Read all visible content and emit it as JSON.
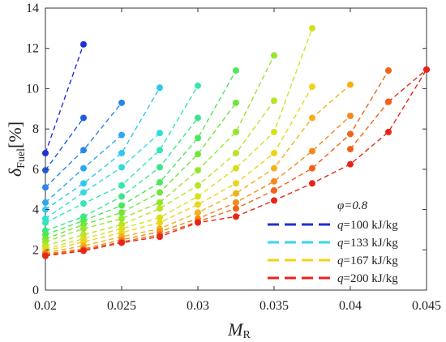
{
  "chart_data": {
    "type": "line",
    "xlabel": "M",
    "xlabel_sub": "R",
    "ylabel": "δ",
    "ylabel_sub": "Fuel",
    "ylabel_unit": "[%]",
    "xlim": [
      0.02,
      0.045
    ],
    "ylim": [
      0,
      14
    ],
    "xticks": [
      0.02,
      0.025,
      0.03,
      0.035,
      0.04,
      0.045
    ],
    "xtick_labels": [
      "0.02",
      "0.025",
      "0.03",
      "0.035",
      "0.04",
      "0.045"
    ],
    "yticks": [
      0,
      2,
      4,
      6,
      8,
      10,
      12,
      14
    ],
    "ytick_labels": [
      "0",
      "2",
      "4",
      "6",
      "8",
      "10",
      "12",
      "14"
    ],
    "grid": false,
    "legend_placement": "bottom-right",
    "legend_title": "φ=0.8",
    "legend": [
      {
        "q": "q",
        "label": "=100 kJ/kg",
        "color": "#1f2fd6"
      },
      {
        "q": "q",
        "label": "=133 kJ/kg",
        "color": "#33d6f0"
      },
      {
        "q": "q",
        "label": "=167 kJ/kg",
        "color": "#f0d21a"
      },
      {
        "q": "q",
        "label": "=200 kJ/kg",
        "color": "#e8251a"
      }
    ],
    "series": [
      {
        "color": "#1f2fd6",
        "x": [
          0.02,
          0.0225
        ],
        "y": [
          6.8,
          12.2
        ]
      },
      {
        "color": "#1e5ce0",
        "x": [
          0.02,
          0.0225
        ],
        "y": [
          5.95,
          8.55
        ]
      },
      {
        "color": "#2a85ea",
        "x": [
          0.02,
          0.0225,
          0.025
        ],
        "y": [
          5.1,
          6.95,
          9.3
        ]
      },
      {
        "color": "#2aa8f2",
        "x": [
          0.02,
          0.0225,
          0.025
        ],
        "y": [
          4.35,
          6.05,
          7.7
        ]
      },
      {
        "color": "#2fc8f0",
        "x": [
          0.02,
          0.0225,
          0.025,
          0.0275
        ],
        "y": [
          4.0,
          5.3,
          6.8,
          10.05
        ]
      },
      {
        "color": "#33dcdc",
        "x": [
          0.02,
          0.0225,
          0.025,
          0.0275
        ],
        "y": [
          3.55,
          4.85,
          6.1,
          7.8
        ]
      },
      {
        "color": "#33e6b4",
        "x": [
          0.02,
          0.0225,
          0.025,
          0.0275,
          0.03
        ],
        "y": [
          3.35,
          4.3,
          5.2,
          6.95,
          10.15
        ]
      },
      {
        "color": "#3ae68a",
        "x": [
          0.02,
          0.0225,
          0.025,
          0.0275,
          0.03
        ],
        "y": [
          2.95,
          3.65,
          4.65,
          6.1,
          8.55
        ]
      },
      {
        "color": "#4ee65a",
        "x": [
          0.02,
          0.0225,
          0.025,
          0.0275,
          0.03,
          0.0325
        ],
        "y": [
          2.75,
          3.45,
          4.2,
          5.35,
          7.55,
          10.9
        ]
      },
      {
        "color": "#6ee63a",
        "x": [
          0.02,
          0.0225,
          0.025,
          0.0275,
          0.03,
          0.0325
        ],
        "y": [
          2.55,
          3.25,
          3.85,
          4.85,
          6.75,
          9.3
        ]
      },
      {
        "color": "#94e62c",
        "x": [
          0.02,
          0.0225,
          0.025,
          0.0275,
          0.03,
          0.0325,
          0.035
        ],
        "y": [
          2.4,
          3.05,
          3.55,
          4.35,
          5.95,
          7.85,
          11.65
        ]
      },
      {
        "color": "#b9e424",
        "x": [
          0.02,
          0.0225,
          0.025,
          0.0275,
          0.03,
          0.0325,
          0.035
        ],
        "y": [
          2.2,
          2.75,
          3.25,
          4.05,
          5.2,
          6.8,
          9.4
        ]
      },
      {
        "color": "#d6e01e",
        "x": [
          0.02,
          0.0225,
          0.025,
          0.0275,
          0.03,
          0.0325,
          0.035,
          0.0375
        ],
        "y": [
          2.05,
          2.55,
          3.05,
          3.6,
          4.65,
          6.05,
          7.85,
          13.0
        ]
      },
      {
        "color": "#ecd41a",
        "x": [
          0.02,
          0.0225,
          0.025,
          0.0275,
          0.03,
          0.0325,
          0.035,
          0.0375
        ],
        "y": [
          1.95,
          2.4,
          2.85,
          3.35,
          4.25,
          5.3,
          6.8,
          10.1
        ]
      },
      {
        "color": "#f3b01a",
        "x": [
          0.02,
          0.0225,
          0.025,
          0.0275,
          0.03,
          0.0325,
          0.035,
          0.0375,
          0.04
        ],
        "y": [
          1.85,
          2.2,
          2.65,
          3.05,
          3.85,
          4.8,
          6.05,
          8.55,
          10.2
        ]
      },
      {
        "color": "#f38a1a",
        "x": [
          0.02,
          0.0225,
          0.025,
          0.0275,
          0.03,
          0.0325,
          0.035,
          0.0375,
          0.04
        ],
        "y": [
          1.8,
          2.05,
          2.5,
          2.9,
          3.55,
          4.35,
          5.4,
          6.9,
          8.65
        ]
      },
      {
        "color": "#ef621a",
        "x": [
          0.02,
          0.0225,
          0.025,
          0.0275,
          0.03,
          0.0325,
          0.035,
          0.0375,
          0.04,
          0.0425
        ],
        "y": [
          1.75,
          2.0,
          2.4,
          2.75,
          3.4,
          4.05,
          4.95,
          6.05,
          7.75,
          10.9
        ]
      },
      {
        "color": "#e8251a",
        "x": [
          0.02,
          0.0225,
          0.025,
          0.0275,
          0.03,
          0.0325,
          0.035,
          0.0375,
          0.04,
          0.0425,
          0.045
        ],
        "y": [
          1.7,
          1.95,
          2.35,
          2.65,
          3.35,
          3.65,
          4.45,
          5.3,
          6.25,
          7.85,
          10.95
        ]
      },
      {
        "color": "#e8251a",
        "x": [
          0.0425,
          0.045
        ],
        "y": [
          9.35,
          10.95
        ]
      },
      {
        "color": "#ef621a",
        "x": [
          0.04,
          0.0425
        ],
        "y": [
          7.0,
          9.35
        ]
      }
    ]
  }
}
